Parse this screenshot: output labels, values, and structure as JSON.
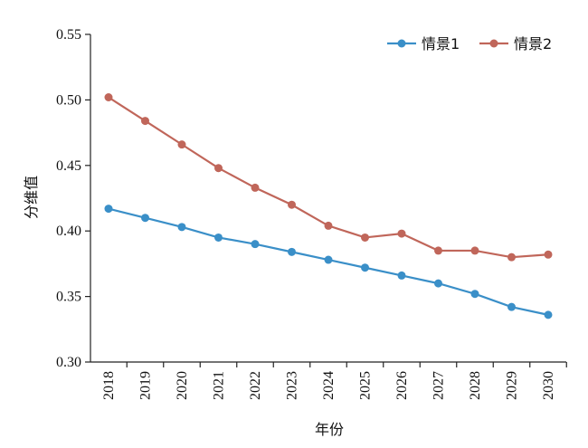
{
  "chart_data": {
    "type": "line",
    "categories": [
      "2018",
      "2019",
      "2020",
      "2021",
      "2022",
      "2023",
      "2024",
      "2025",
      "2026",
      "2027",
      "2028",
      "2029",
      "2030"
    ],
    "xlabel": "年份",
    "ylabel": "分维值",
    "ylim": [
      0.3,
      0.55
    ],
    "yticks": [
      "0.30",
      "0.35",
      "0.40",
      "0.45",
      "0.50",
      "0.55"
    ],
    "grid": false,
    "legend_position": "top-right",
    "series": [
      {
        "name": "情景1",
        "color": "#3a8fc8",
        "values": [
          0.417,
          0.41,
          0.403,
          0.395,
          0.39,
          0.384,
          0.378,
          0.372,
          0.366,
          0.36,
          0.352,
          0.342,
          0.336
        ]
      },
      {
        "name": "情景2",
        "color": "#c0665a",
        "values": [
          0.502,
          0.484,
          0.466,
          0.448,
          0.433,
          0.42,
          0.404,
          0.395,
          0.398,
          0.385,
          0.385,
          0.38,
          0.382
        ]
      }
    ]
  }
}
